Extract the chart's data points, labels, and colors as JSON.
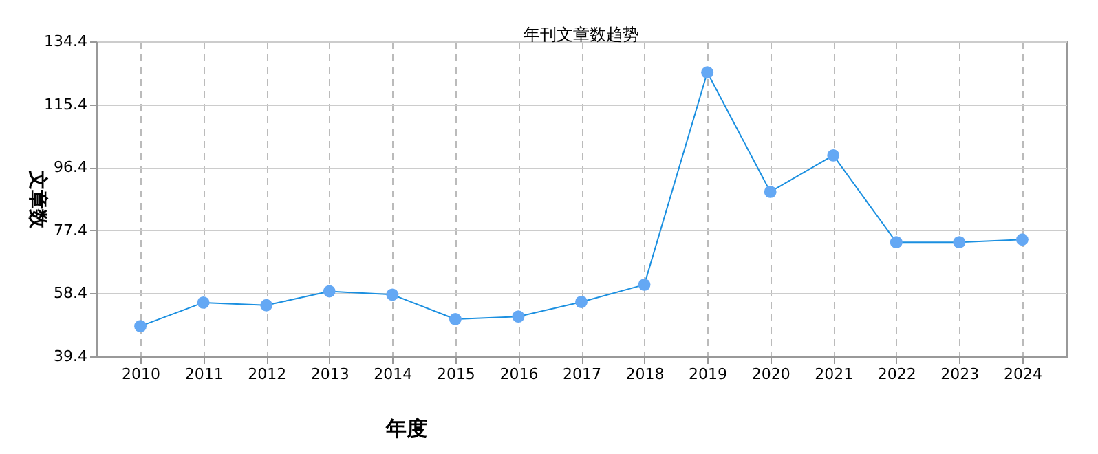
{
  "chart_data": {
    "type": "line",
    "title": "年刊文章数趋势",
    "xlabel": "年度",
    "ylabel": "文章数",
    "categories": [
      "2010",
      "2011",
      "2012",
      "2013",
      "2014",
      "2015",
      "2016",
      "2017",
      "2018",
      "2019",
      "2020",
      "2021",
      "2022",
      "2023",
      "2024"
    ],
    "series": [
      {
        "color": "#1a8fe0",
        "values": [
          48.5,
          55.6,
          54.8,
          59,
          58,
          50.6,
          51.4,
          55.8,
          61,
          125,
          89,
          100,
          73.8,
          73.8,
          74.6
        ]
      }
    ],
    "ylim": [
      39.4,
      134.4
    ],
    "yticks": [
      39.4,
      58.4,
      77.4,
      96.4,
      115.4,
      134.4
    ],
    "grid": true,
    "marker": "circle",
    "line_style": "solid"
  }
}
